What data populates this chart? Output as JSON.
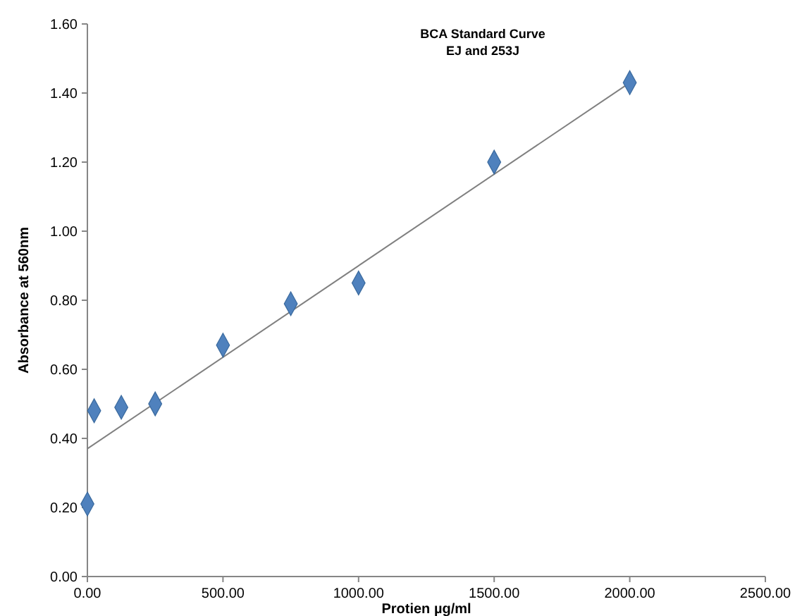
{
  "chart_data": {
    "type": "scatter",
    "title": "BCA Standard Curve\nEJ and 253J",
    "xlabel": "Protien  µg/ml",
    "ylabel": "Absorbance at 560nm",
    "xlim": [
      0,
      2500
    ],
    "xticks": [
      {
        "value": 0,
        "label": "0.00"
      },
      {
        "value": 500,
        "label": "500.00"
      },
      {
        "value": 1000,
        "label": "1000.00"
      },
      {
        "value": 1500,
        "label": "1500.00"
      },
      {
        "value": 2000,
        "label": "2000.00"
      },
      {
        "value": 2500,
        "label": "2500.00"
      }
    ],
    "ylim": [
      0,
      1.6
    ],
    "yticks": [
      {
        "value": 0,
        "label": "0.00"
      },
      {
        "value": 0.2,
        "label": "0.20"
      },
      {
        "value": 0.4,
        "label": "0.40"
      },
      {
        "value": 0.6,
        "label": "0.60"
      },
      {
        "value": 0.8,
        "label": "0.80"
      },
      {
        "value": 1,
        "label": "1.00"
      },
      {
        "value": 1.2,
        "label": "1.20"
      },
      {
        "value": 1.4,
        "label": "1.40"
      },
      {
        "value": 1.6,
        "label": "1.60"
      }
    ],
    "grid": false,
    "series": [
      {
        "color": "#4f81bd",
        "marker": "diamond",
        "x": [
          0,
          25,
          125,
          250,
          500,
          750,
          1000,
          1500,
          2000
        ],
        "values": [
          0.21,
          0.48,
          0.49,
          0.5,
          0.67,
          0.79,
          0.85,
          1.2,
          1.43
        ]
      },
      {
        "type": "line",
        "color": "#808080",
        "marker": "none",
        "x": [
          0,
          2000
        ],
        "values": [
          0.37,
          1.43
        ]
      }
    ]
  }
}
